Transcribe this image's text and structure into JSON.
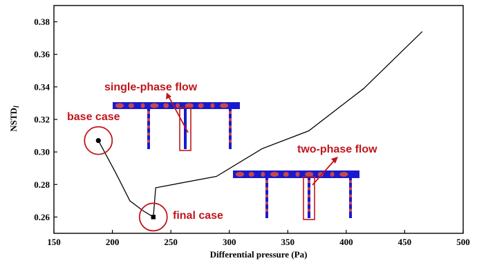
{
  "chart_data": {
    "type": "line",
    "xlabel": "Differential pressure (Pa)",
    "ylabel_main": "NSTD",
    "ylabel_sub": "l",
    "xlim": [
      150,
      500
    ],
    "ylim": [
      0.25,
      0.39
    ],
    "x_ticks": [
      "150",
      "200",
      "250",
      "300",
      "350",
      "400",
      "450",
      "500"
    ],
    "y_ticks": [
      "0.26",
      "0.28",
      "0.30",
      "0.32",
      "0.34",
      "0.36",
      "0.38"
    ],
    "series": [
      {
        "points": [
          [
            188,
            0.307
          ],
          [
            203,
            0.287
          ],
          [
            215,
            0.27
          ],
          [
            226,
            0.264
          ],
          [
            235,
            0.26
          ],
          [
            237,
            0.278
          ],
          [
            289,
            0.285
          ],
          [
            328,
            0.302
          ],
          [
            368,
            0.313
          ],
          [
            415,
            0.339
          ],
          [
            465,
            0.374
          ]
        ]
      }
    ],
    "markers": [
      {
        "x": 188,
        "y": 0.307,
        "shape": "circle"
      },
      {
        "x": 235,
        "y": 0.26,
        "shape": "square"
      }
    ],
    "annotations": {
      "base": "base case",
      "final": "final case",
      "single": "single-phase flow",
      "two": "two-phase flow"
    },
    "colors": {
      "line": "#000000",
      "annotation": "#c0161b",
      "pipe": "#1a1acc",
      "bubble": "#c8484a"
    }
  }
}
